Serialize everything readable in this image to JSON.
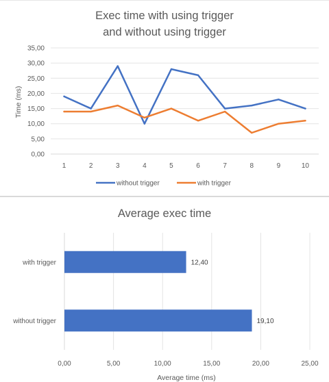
{
  "chart_data": [
    {
      "type": "line",
      "title_lines": [
        "Exec time with using trigger",
        "and without using trigger"
      ],
      "xlabel": "",
      "ylabel": "Time (ms)",
      "x": [
        "1",
        "2",
        "3",
        "4",
        "5",
        "6",
        "7",
        "8",
        "9",
        "10"
      ],
      "ylim": [
        0,
        35
      ],
      "yticks": [
        "0,00",
        "5,00",
        "10,00",
        "15,00",
        "20,00",
        "25,00",
        "30,00",
        "35,00"
      ],
      "grid": true,
      "legend_position": "bottom",
      "series": [
        {
          "name": "without trigger",
          "color": "#4472c4",
          "values": [
            19,
            15,
            29,
            10,
            28,
            26,
            15,
            16,
            18,
            15
          ]
        },
        {
          "name": "with trigger",
          "color": "#ed7d31",
          "values": [
            14,
            14,
            16,
            12,
            15,
            11,
            14,
            7,
            10,
            11
          ]
        }
      ]
    },
    {
      "type": "bar",
      "orientation": "horizontal",
      "title": "Average exec time",
      "xlabel": "Average time (ms)",
      "ylabel": "",
      "categories": [
        "with trigger",
        "without trigger"
      ],
      "values": [
        12.4,
        19.1
      ],
      "data_labels": [
        "12,40",
        "19,10"
      ],
      "xlim": [
        0,
        25
      ],
      "xticks": [
        "0,00",
        "5,00",
        "10,00",
        "15,00",
        "20,00",
        "25,00"
      ],
      "grid": true,
      "color": "#4472c4"
    }
  ]
}
